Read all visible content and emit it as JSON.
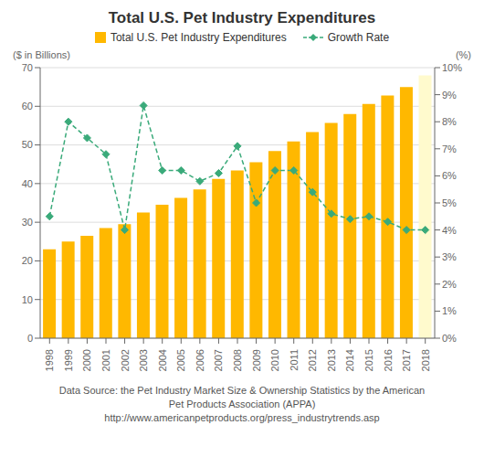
{
  "chart_data": {
    "type": "bar",
    "title": "Total U.S. Pet Industry Expenditures",
    "ylabel": "($ in Billions)",
    "y2label": "(%)",
    "categories": [
      "1998",
      "1999",
      "2000",
      "2001",
      "2002",
      "2003",
      "2004",
      "2005",
      "2006",
      "2007",
      "2008",
      "2009",
      "2010",
      "2011",
      "2012",
      "2013",
      "2014",
      "2015",
      "2016",
      "2017",
      "2018"
    ],
    "series": [
      {
        "name": "Total U.S. Pet Industry Expenditures",
        "type": "bar",
        "colors": [
          "#FFB800",
          "#FFB800",
          "#FFB800",
          "#FFB800",
          "#FFB800",
          "#FFB800",
          "#FFB800",
          "#FFB800",
          "#FFB800",
          "#FFB800",
          "#FFB800",
          "#FFB800",
          "#FFB800",
          "#FFB800",
          "#FFB800",
          "#FFB800",
          "#FFB800",
          "#FFB800",
          "#FFB800",
          "#FFB800",
          "#FFFACD"
        ],
        "values": [
          23.0,
          25.0,
          26.5,
          28.5,
          29.5,
          32.5,
          34.5,
          36.3,
          38.5,
          41.2,
          43.4,
          45.5,
          48.4,
          50.9,
          53.3,
          55.7,
          58.0,
          60.6,
          62.8,
          65.0,
          68.0
        ]
      },
      {
        "name": "Growth Rate",
        "type": "line",
        "color": "#3AAA7A",
        "marker": "diamond",
        "line_style": "dashed",
        "axis": "y2",
        "values": [
          4.5,
          8.0,
          7.4,
          6.8,
          4.0,
          8.6,
          6.2,
          6.2,
          5.8,
          6.1,
          7.1,
          5.0,
          6.2,
          6.2,
          5.4,
          4.6,
          4.4,
          4.5,
          4.3,
          4.0,
          4.0
        ]
      }
    ],
    "ylim": [
      0,
      70
    ],
    "yticks": [
      0,
      10,
      20,
      30,
      40,
      50,
      60,
      70
    ],
    "y2lim": [
      0,
      10
    ],
    "y2ticks": [
      {
        "value": 0,
        "label": "0%"
      },
      {
        "value": 1,
        "label": "1%"
      },
      {
        "value": 2,
        "label": "2%"
      },
      {
        "value": 3,
        "label": "3%"
      },
      {
        "value": 4,
        "label": "4%"
      },
      {
        "value": 5,
        "label": "5%"
      },
      {
        "value": 6,
        "label": "6%"
      },
      {
        "value": 7,
        "label": "7%"
      },
      {
        "value": 8,
        "label": "8%"
      },
      {
        "value": 9,
        "label": "9%"
      },
      {
        "value": 10,
        "label": "10%"
      }
    ],
    "grid": true,
    "legend": "top",
    "annotations": [
      "Data Source: the Pet Industry Market Size & Ownership Statistics by the American",
      "Pet Products Association (APPA)",
      "http://www.americanpetproducts.org/press_industrytrends.asp"
    ]
  }
}
